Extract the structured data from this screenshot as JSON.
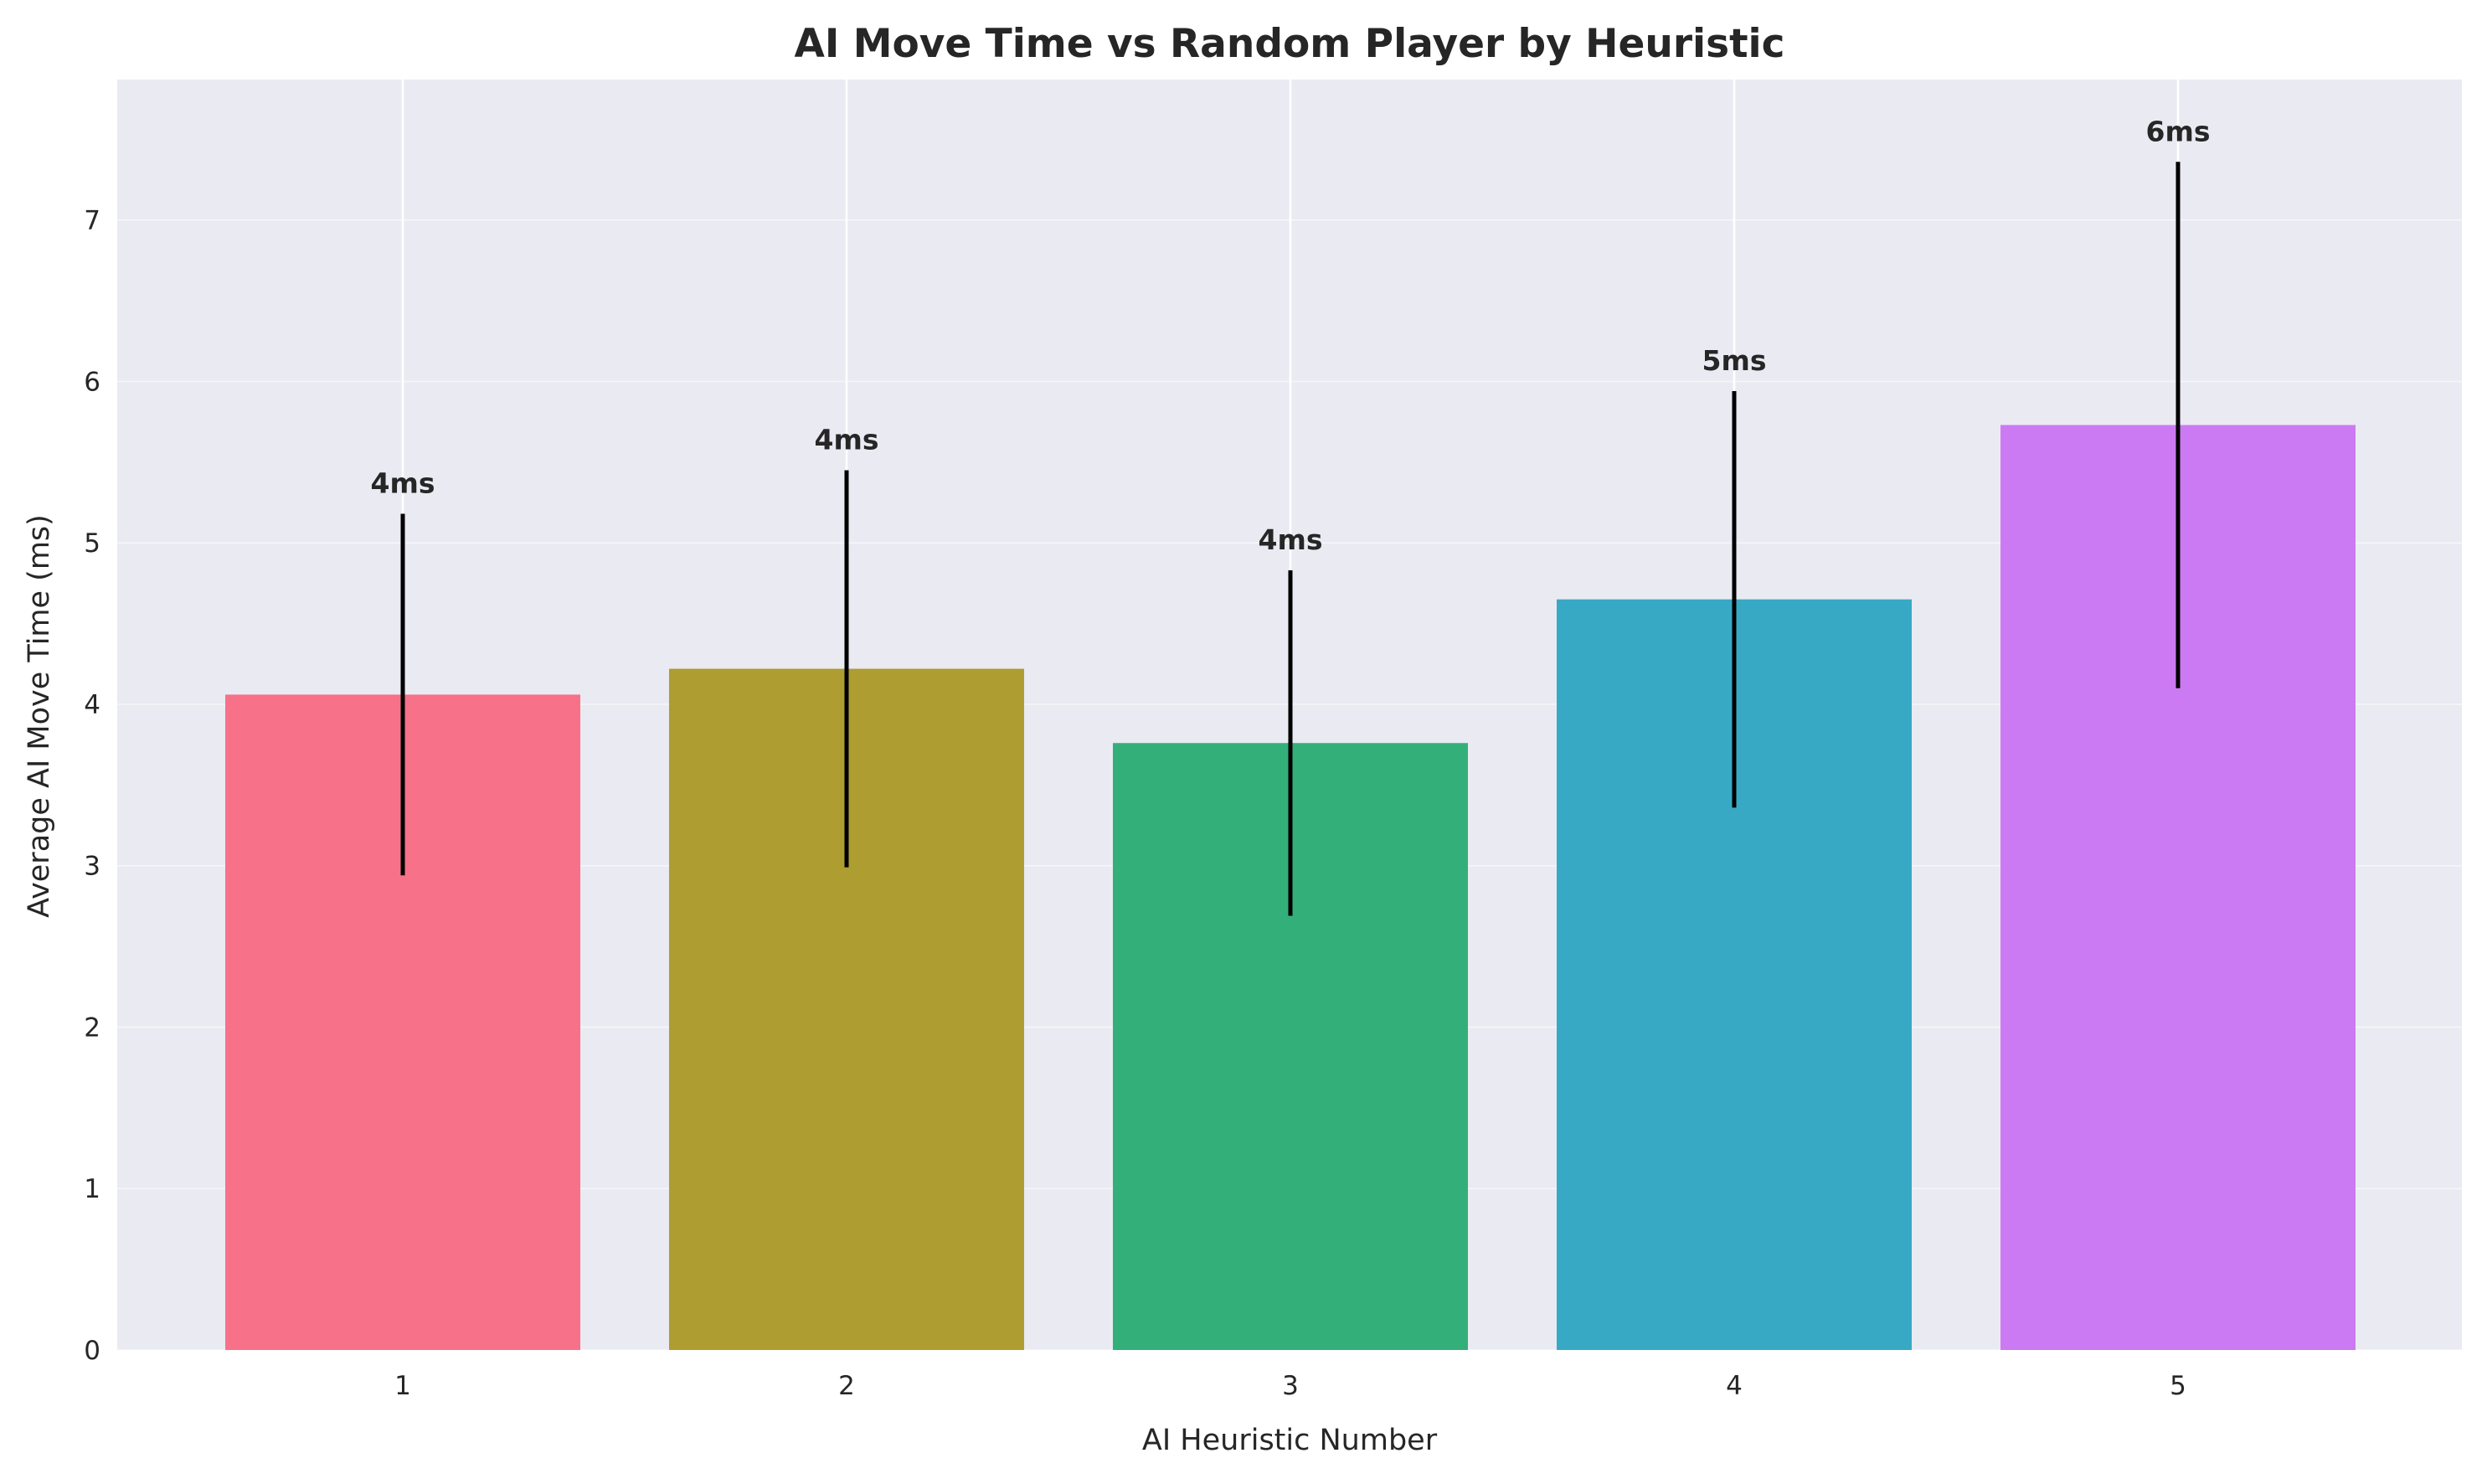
{
  "chart_data": {
    "type": "bar",
    "title": "AI Move Time vs Random Player by Heuristic",
    "xlabel": "AI Heuristic Number",
    "ylabel": "Average AI Move Time (ms)",
    "categories": [
      "1",
      "2",
      "3",
      "4",
      "5"
    ],
    "values": [
      4.06,
      4.22,
      3.76,
      4.65,
      5.73
    ],
    "error": [
      1.12,
      1.23,
      1.07,
      1.29,
      1.63
    ],
    "data_labels": [
      "4ms",
      "4ms",
      "4ms",
      "5ms",
      "6ms"
    ],
    "colors": [
      "#f77189",
      "#ae9d31",
      "#33b07a",
      "#38a9c5",
      "#cc7af4"
    ],
    "ylim": [
      0,
      7.87
    ],
    "yticks": [
      0,
      1,
      2,
      3,
      4,
      5,
      6,
      7
    ],
    "grid": true,
    "background_color": "#eaeaf2",
    "errorbar_color": "#000000"
  }
}
